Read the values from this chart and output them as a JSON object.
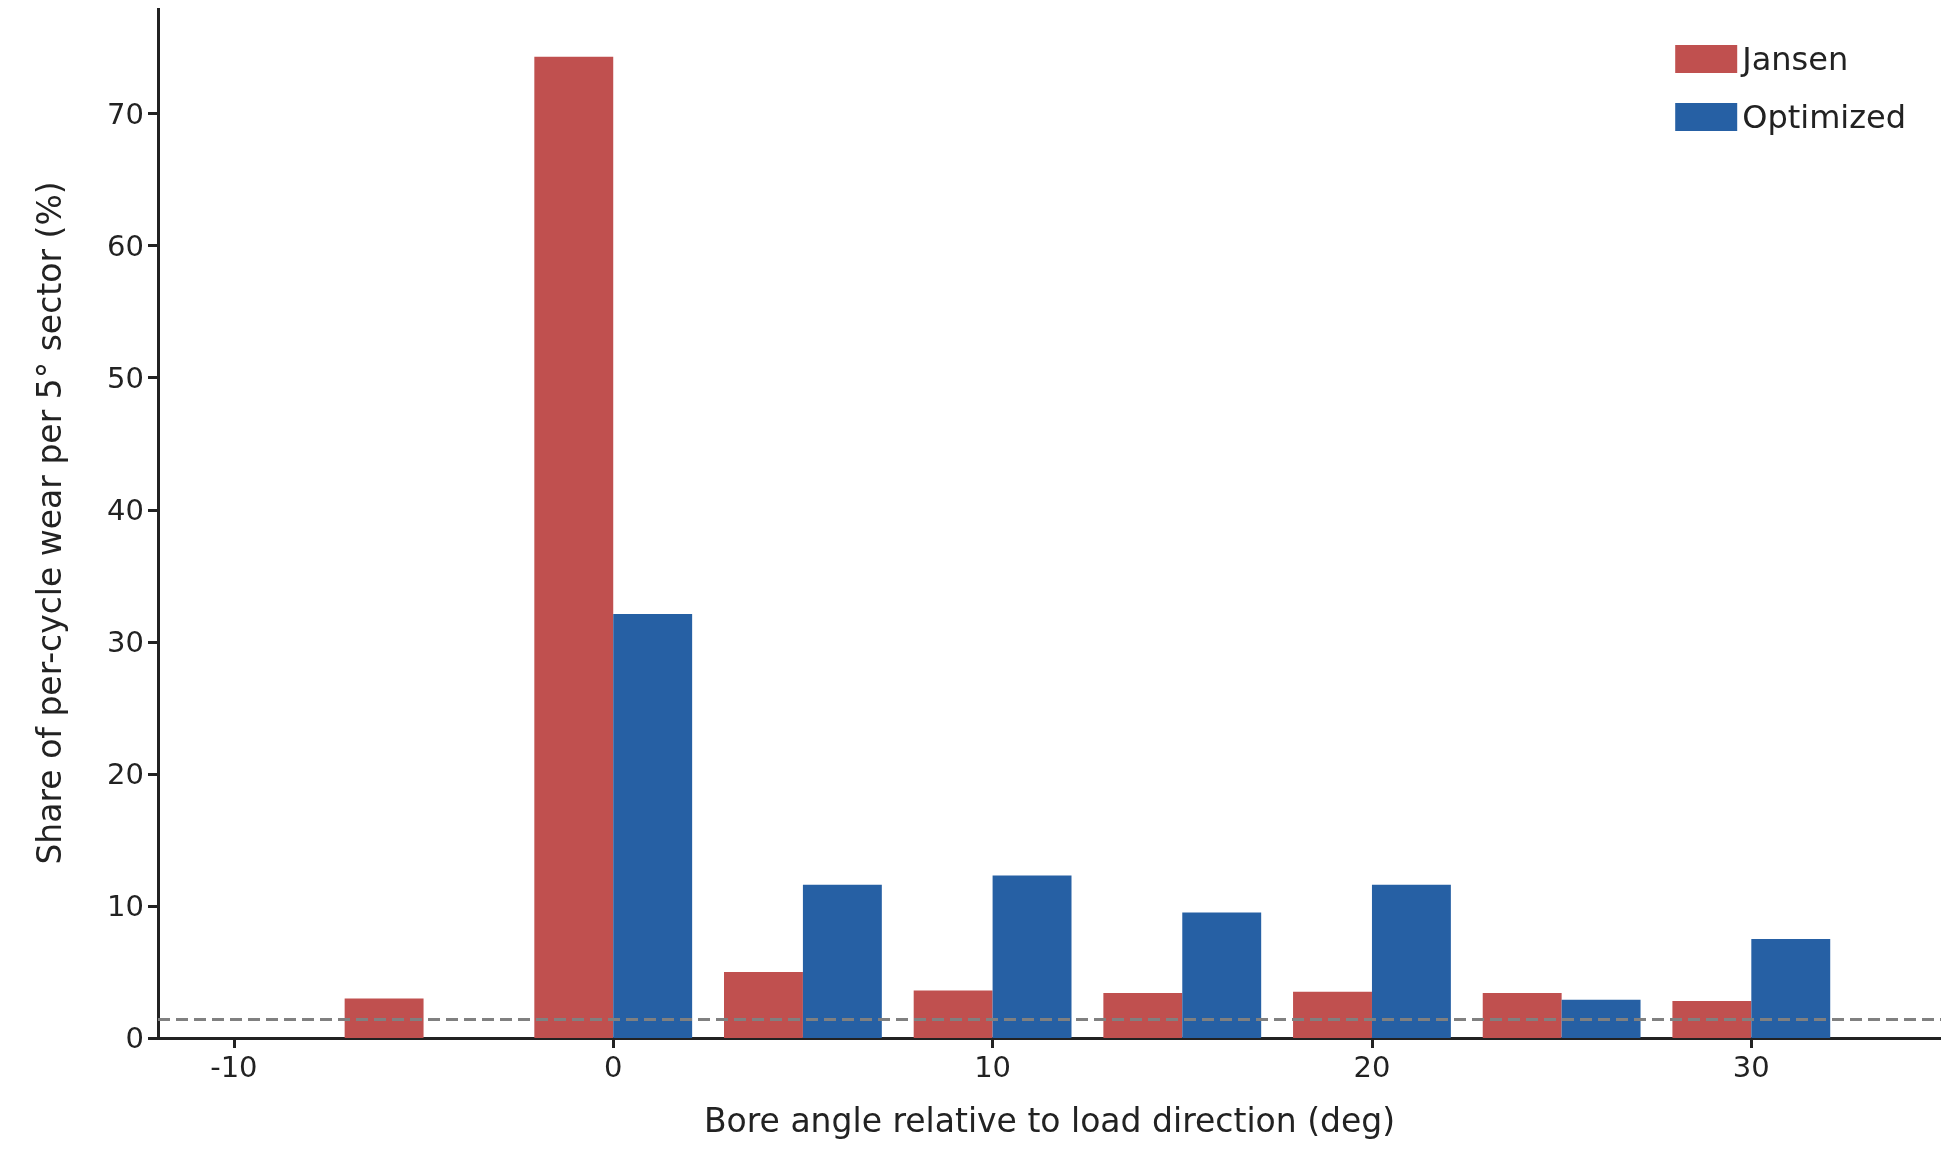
{
  "chart_data": {
    "type": "bar",
    "xlabel": "Bore angle relative to load direction (deg)",
    "ylabel": "Share of per-cycle wear per 5° sector (%)",
    "x": [
      -5,
      0,
      5,
      10,
      15,
      20,
      25,
      30
    ],
    "series": [
      {
        "name": "Jansen",
        "color": "#c0504f",
        "values": [
          3.0,
          74.3,
          5.0,
          3.6,
          3.4,
          3.5,
          3.4,
          2.8
        ]
      },
      {
        "name": "Optimized",
        "color": "#2660a4",
        "values": [
          null,
          32.1,
          11.6,
          12.3,
          9.5,
          11.6,
          2.9,
          7.5
        ]
      }
    ],
    "xlim": [
      -12,
      35
    ],
    "xticks": [
      -10,
      0,
      10,
      20,
      30
    ],
    "ylim": [
      0,
      78
    ],
    "yticks": [
      0,
      10,
      20,
      30,
      40,
      50,
      60,
      70
    ],
    "ref_lines": [
      {
        "axis": "y",
        "value": 1.4,
        "color": "#808080",
        "line_style": "dashed"
      }
    ],
    "grid": false,
    "legend": "top right"
  }
}
